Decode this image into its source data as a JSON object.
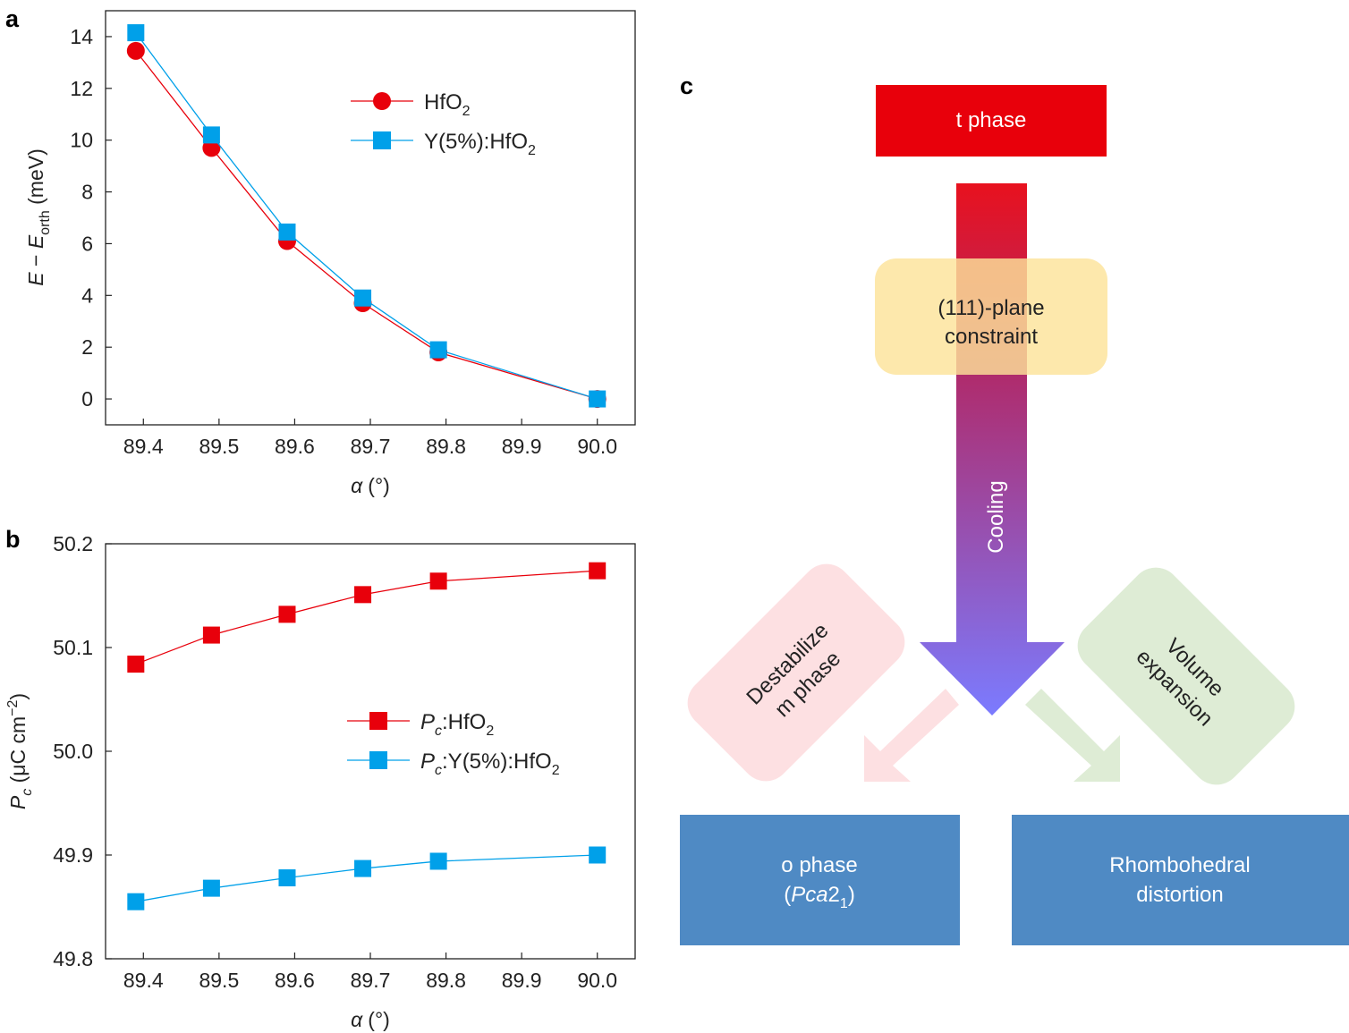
{
  "panel_labels": {
    "a": "a",
    "b": "b",
    "c": "c"
  },
  "colors": {
    "hfo2": "#e8000b",
    "y_hfo2": "#00a0e9",
    "t_phase": "#e8000b",
    "constraint": "#fde39a",
    "result_box": "#4f8ac4",
    "destab": "#fde0e2",
    "volume": "#deecd5"
  },
  "chart_data": [
    {
      "type": "line",
      "panel": "a",
      "x": [
        89.39,
        89.49,
        89.59,
        89.69,
        89.79,
        90.0
      ],
      "xlim": [
        89.35,
        90.05
      ],
      "ylim": [
        -1,
        15
      ],
      "x_ticks": [
        "89.4",
        "89.5",
        "89.6",
        "89.7",
        "89.8",
        "89.9",
        "90.0"
      ],
      "y_ticks": [
        "0",
        "2",
        "4",
        "6",
        "8",
        "10",
        "12",
        "14"
      ],
      "xlabel": {
        "sym": "α",
        "unit": "(°)"
      },
      "ylabel": {
        "e": "E",
        "dash": " − ",
        "e2": "E",
        "sub": "orth",
        "unit": " (meV)"
      },
      "grid": false,
      "legend_position": "top-right",
      "series": [
        {
          "name": "HfO",
          "sub": "2",
          "suffix": "",
          "color": "#e8000b",
          "marker": "circle",
          "values": [
            13.45,
            9.7,
            6.1,
            3.7,
            1.8,
            0.0
          ]
        },
        {
          "name": "Y(5%):HfO",
          "sub": "2",
          "suffix": "",
          "color": "#00a0e9",
          "marker": "square",
          "values": [
            14.15,
            10.2,
            6.45,
            3.9,
            1.9,
            0.0
          ]
        }
      ]
    },
    {
      "type": "line",
      "panel": "b",
      "x": [
        89.39,
        89.49,
        89.59,
        89.69,
        89.79,
        90.0
      ],
      "xlim": [
        89.35,
        90.05
      ],
      "ylim": [
        49.8,
        50.2
      ],
      "x_ticks": [
        "89.4",
        "89.5",
        "89.6",
        "89.7",
        "89.8",
        "89.9",
        "90.0"
      ],
      "y_ticks": [
        "49.8",
        "49.9",
        "50.0",
        "50.1",
        "50.2"
      ],
      "xlabel": {
        "sym": "α",
        "unit": "(°)"
      },
      "ylabel": {
        "p": "P",
        "sub": "c",
        "unit": " (μC cm",
        "sup": "−2",
        "close": ")"
      },
      "grid": false,
      "legend_position": "center-right",
      "series": [
        {
          "name": "P",
          "namesub": "c",
          "label": ":HfO",
          "sub": "2",
          "color": "#e8000b",
          "marker": "square",
          "values": [
            50.084,
            50.112,
            50.132,
            50.151,
            50.164,
            50.174
          ]
        },
        {
          "name": "P",
          "namesub": "c",
          "label": ":Y(5%):HfO",
          "sub": "2",
          "color": "#00a0e9",
          "marker": "square",
          "values": [
            49.855,
            49.868,
            49.878,
            49.887,
            49.894,
            49.9
          ]
        }
      ]
    }
  ],
  "diagram": {
    "t_phase": "t phase",
    "constraint_line1": "(111)-plane",
    "constraint_line2": "constraint",
    "cooling": "Cooling",
    "destab_line1": "Destabilize",
    "destab_line2": "m phase",
    "volume_line1": "Volume",
    "volume_line2": "expansion",
    "o_phase_line1": "o phase",
    "o_phase_open": "(",
    "o_phase_italic": "Pca",
    "o_phase_num": "2",
    "o_phase_sub": "1",
    "o_phase_close": ")",
    "rhombo_line1": "Rhombohedral",
    "rhombo_line2": "distortion"
  }
}
